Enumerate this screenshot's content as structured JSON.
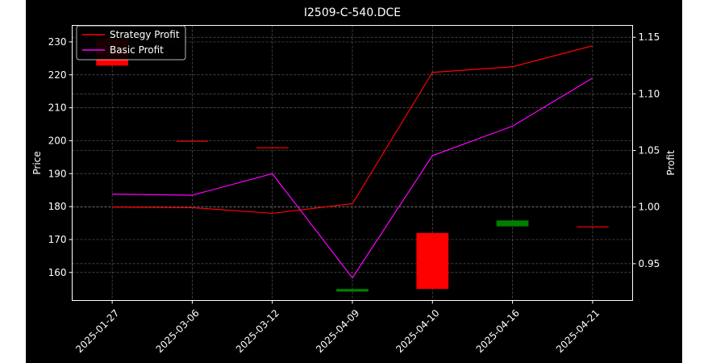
{
  "chart_data": {
    "type": "candlestick+line",
    "title": "I2509-C-540.DCE",
    "xlabel": "",
    "ylabel_left": "Price",
    "ylabel_right": "Profit",
    "categories": [
      "2025-01-27",
      "2025-03-06",
      "2025-03-12",
      "2025-04-09",
      "2025-04-10",
      "2025-04-16",
      "2025-04-21"
    ],
    "ylim_left": [
      151.5,
      235.0
    ],
    "ylim_right": [
      0.9175,
      1.1605
    ],
    "yticks_left": [
      160,
      170,
      180,
      190,
      200,
      210,
      220,
      230
    ],
    "yticks_right": [
      0.95,
      1.0,
      1.05,
      1.1,
      1.15
    ],
    "grid": true,
    "legend_position": "top-left",
    "candles": [
      {
        "open": 231.0,
        "close": 222.8,
        "direction": "down"
      },
      {
        "open": 200.0,
        "close": 200.0,
        "direction": "down"
      },
      {
        "open": 198.0,
        "close": 198.0,
        "direction": "down"
      },
      {
        "open": 154.2,
        "close": 155.0,
        "direction": "up"
      },
      {
        "open": 172.0,
        "close": 155.0,
        "direction": "down"
      },
      {
        "open": 174.0,
        "close": 175.8,
        "direction": "up"
      },
      {
        "open": 174.0,
        "close": 174.0,
        "direction": "down"
      }
    ],
    "series": [
      {
        "name": "Strategy Profit",
        "color": "#ff0000",
        "values": [
          1.0,
          0.9995,
          0.9945,
          1.003,
          1.119,
          1.124,
          1.1425
        ]
      },
      {
        "name": "Basic Profit",
        "color": "#ff00ff",
        "values": [
          1.0115,
          1.0105,
          1.0295,
          0.9375,
          1.0455,
          1.0715,
          1.114
        ]
      }
    ],
    "colors": {
      "up": "#008000",
      "down": "#ff0000",
      "text": "#ffffff",
      "grid": "#808080",
      "background": "#000000"
    }
  }
}
